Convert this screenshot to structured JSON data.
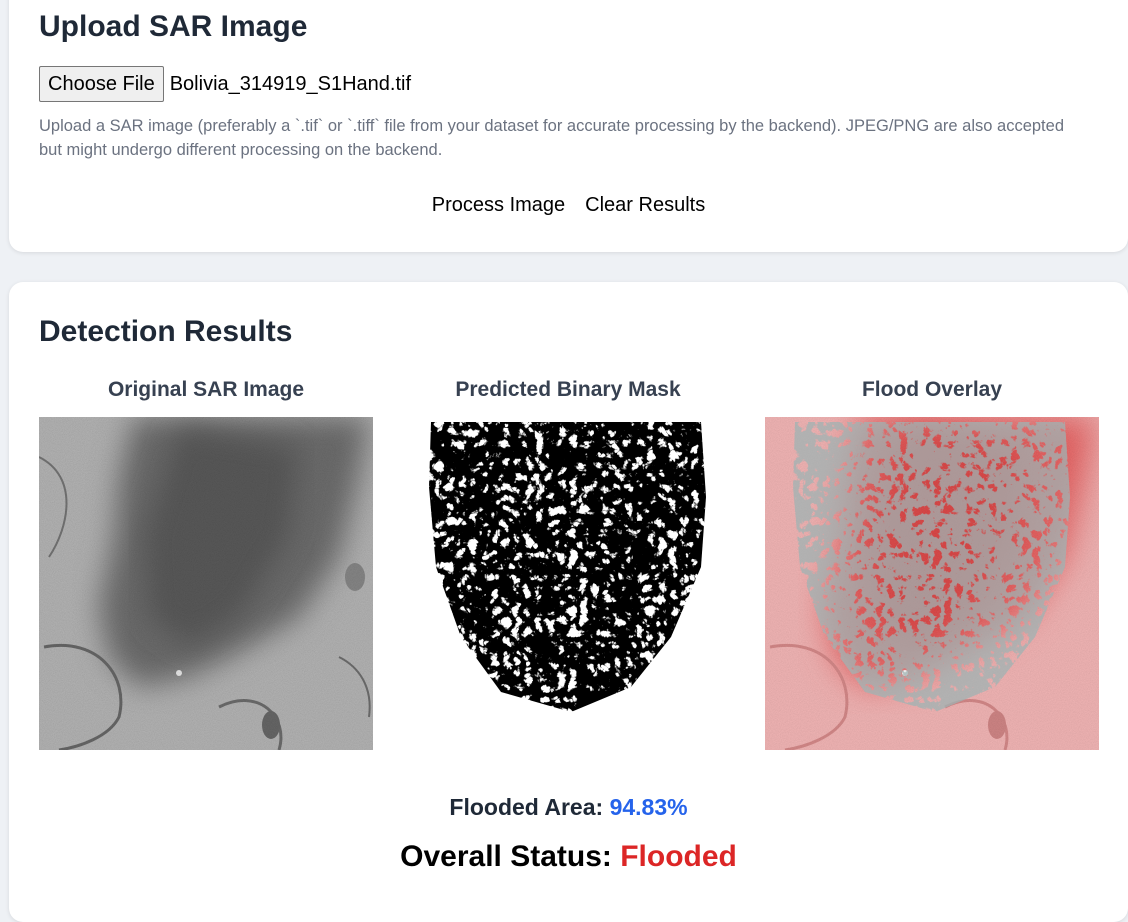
{
  "upload": {
    "title": "Upload SAR Image",
    "choose_file_label": "Choose File",
    "file_name": "Bolivia_314919_S1Hand.tif",
    "help_text": "Upload a SAR image (preferably a `.tif` or `.tiff` file from your dataset for accurate processing by the backend). JPEG/PNG are also accepted but might undergo different processing on the backend.",
    "process_label": "Process Image",
    "clear_label": "Clear Results"
  },
  "results": {
    "title": "Detection Results",
    "original_title": "Original SAR Image",
    "mask_title": "Predicted Binary Mask",
    "overlay_title": "Flood Overlay",
    "flooded_area_label": "Flooded Area: ",
    "flooded_area_value": "94.83%",
    "status_label": "Overall Status: ",
    "status_value": "Flooded"
  },
  "colors": {
    "flooded_value": "#2563eb",
    "status_flooded": "#dc2626",
    "overlay_tint": "#ff4d4d"
  }
}
